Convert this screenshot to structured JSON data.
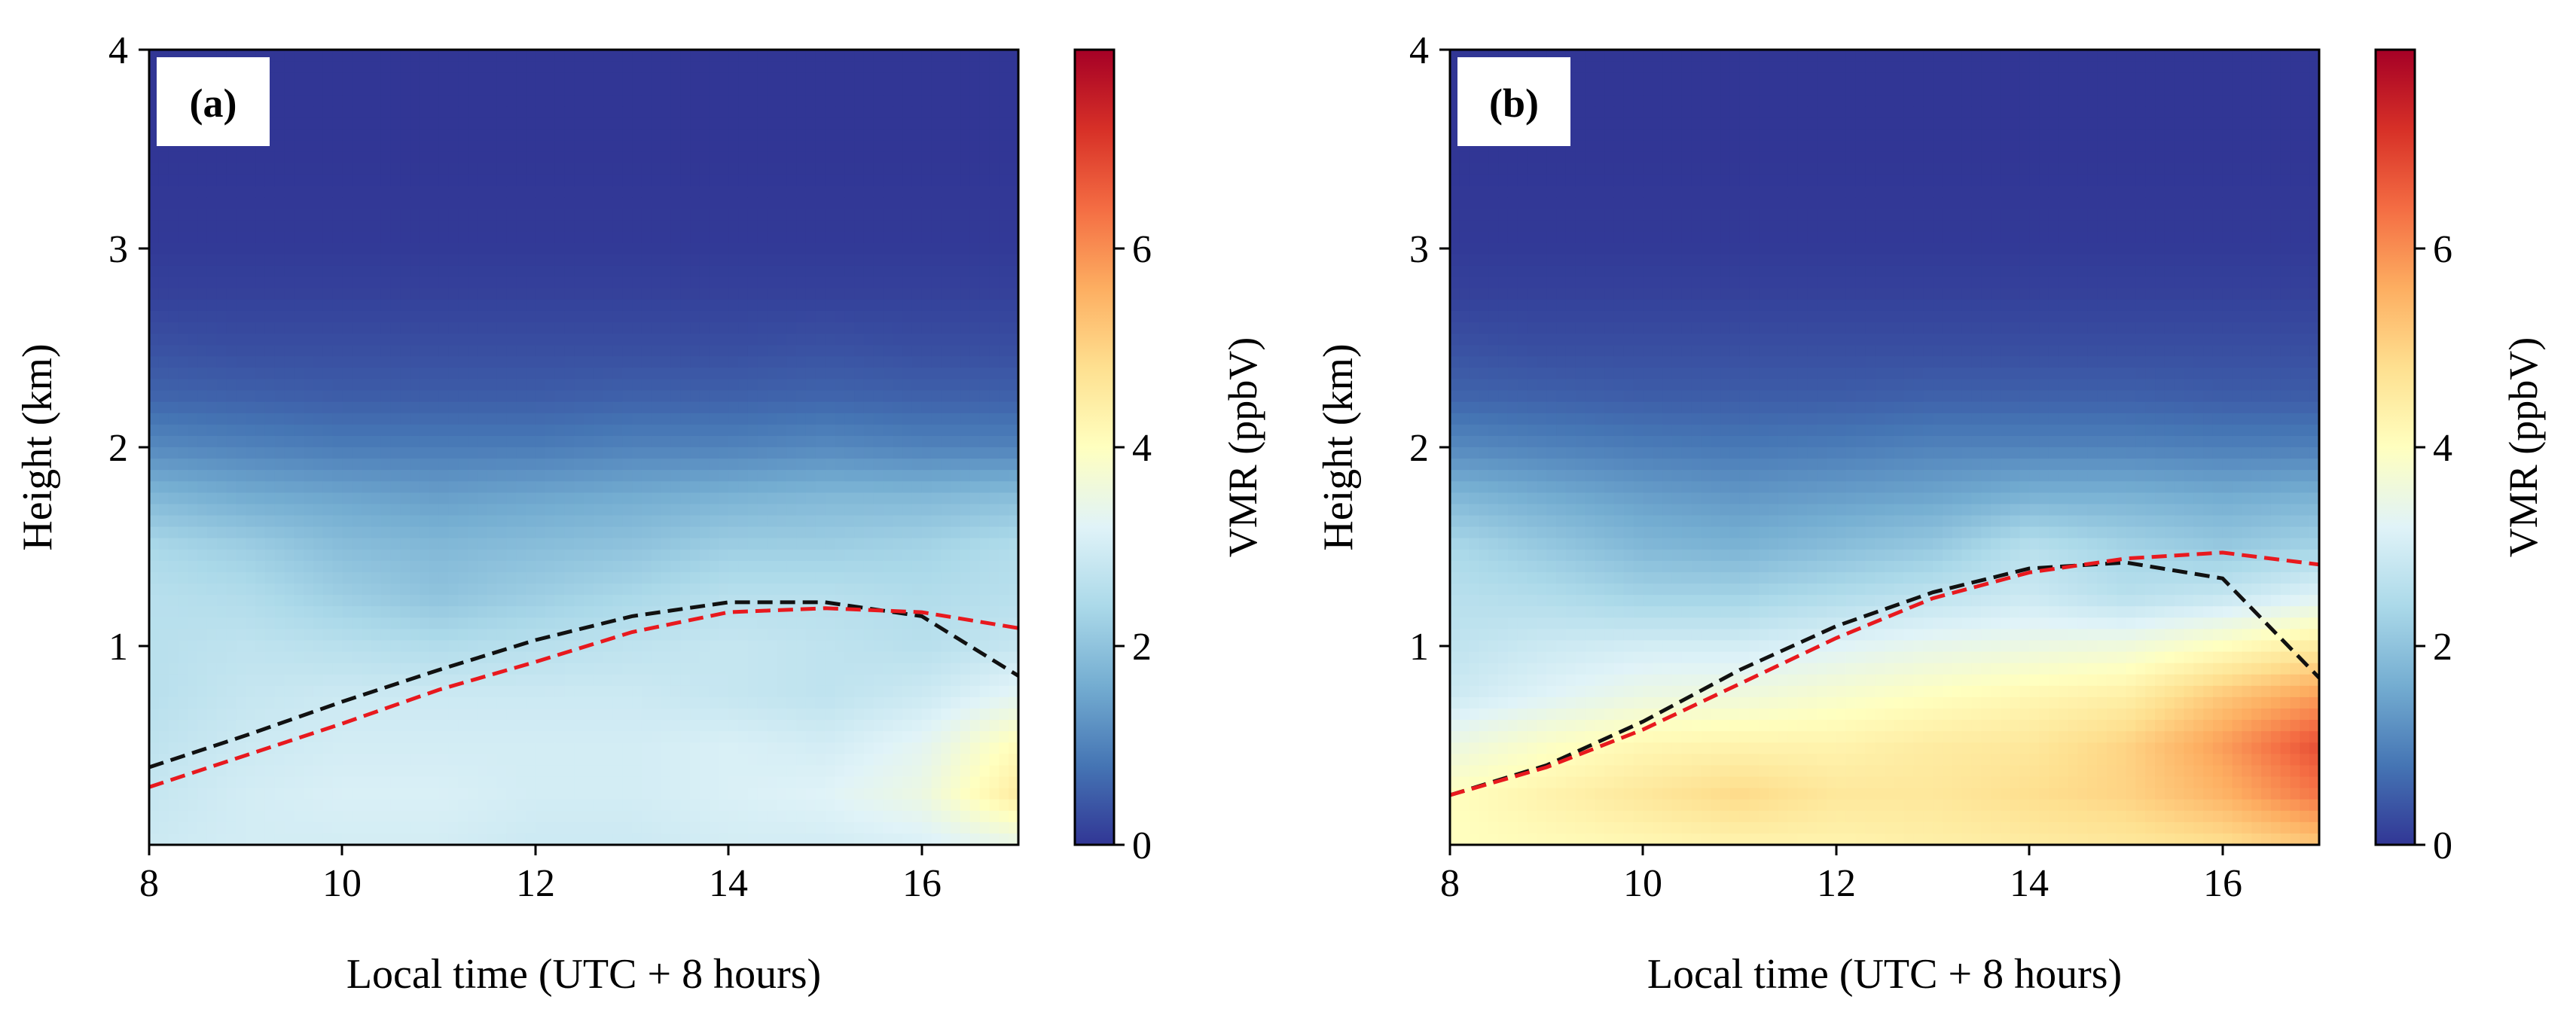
{
  "chart_data": [
    {
      "type": "heatmap",
      "panel_label": "(a)",
      "xlabel": "Local time (UTC + 8 hours)",
      "ylabel": "Height (km)",
      "xlim": [
        8,
        17
      ],
      "ylim": [
        0,
        4
      ],
      "xticks": [
        "8",
        "10",
        "12",
        "14",
        "16"
      ],
      "yticks": [
        "1",
        "2",
        "3",
        "4"
      ],
      "colorbar": {
        "label": "VMR (ppbV)",
        "ticks": [
          "0",
          "2",
          "4",
          "6"
        ],
        "range": [
          0,
          8
        ],
        "colormap": "RdYlBu_r"
      },
      "x_grid": [
        8,
        9,
        10,
        11,
        12,
        13,
        14,
        15,
        16,
        17
      ],
      "y_grid": [
        0,
        0.25,
        0.5,
        0.75,
        1.0,
        1.25,
        1.5,
        1.75,
        2.0,
        2.25,
        2.5,
        2.75,
        3.0,
        3.5,
        4.0
      ],
      "vmr_grid": [
        [
          2.9,
          3.0,
          3.0,
          3.0,
          2.9,
          2.9,
          3.0,
          3.0,
          3.1,
          3.4
        ],
        [
          2.8,
          3.0,
          3.1,
          3.1,
          3.0,
          3.0,
          3.1,
          3.2,
          3.5,
          4.5
        ],
        [
          2.7,
          2.9,
          3.0,
          3.0,
          3.0,
          3.0,
          3.1,
          3.0,
          3.3,
          4.1
        ],
        [
          2.6,
          2.8,
          2.9,
          2.9,
          2.9,
          2.9,
          2.8,
          2.7,
          2.9,
          3.3
        ],
        [
          2.6,
          2.7,
          2.6,
          2.5,
          2.6,
          2.7,
          2.8,
          2.7,
          2.6,
          2.8
        ],
        [
          2.6,
          2.5,
          2.2,
          2.0,
          2.2,
          2.4,
          2.6,
          2.6,
          2.5,
          2.6
        ],
        [
          2.4,
          2.2,
          1.9,
          1.8,
          1.9,
          2.0,
          2.2,
          2.2,
          2.3,
          2.5
        ],
        [
          1.8,
          1.6,
          1.5,
          1.4,
          1.5,
          1.6,
          1.7,
          1.8,
          1.8,
          1.9
        ],
        [
          1.1,
          1.0,
          0.9,
          0.9,
          0.9,
          1.0,
          1.0,
          1.1,
          1.0,
          1.0
        ],
        [
          0.6,
          0.55,
          0.5,
          0.5,
          0.5,
          0.55,
          0.55,
          0.6,
          0.55,
          0.55
        ],
        [
          0.35,
          0.3,
          0.3,
          0.3,
          0.3,
          0.3,
          0.3,
          0.35,
          0.3,
          0.3
        ],
        [
          0.15,
          0.15,
          0.15,
          0.15,
          0.15,
          0.15,
          0.15,
          0.15,
          0.15,
          0.15
        ],
        [
          0.05,
          0.05,
          0.05,
          0.05,
          0.05,
          0.05,
          0.05,
          0.05,
          0.05,
          0.05
        ],
        [
          0.0,
          0.0,
          0.0,
          0.0,
          0.0,
          0.0,
          0.0,
          0.0,
          0.0,
          0.0
        ],
        [
          0.0,
          0.0,
          0.0,
          0.0,
          0.0,
          0.0,
          0.0,
          0.0,
          0.0,
          0.0
        ]
      ],
      "series": [
        {
          "name": "black dashed",
          "color": "#111111",
          "x": [
            8,
            9,
            10,
            11,
            12,
            13,
            14,
            15,
            16,
            17
          ],
          "y": [
            0.39,
            0.55,
            0.72,
            0.88,
            1.03,
            1.15,
            1.22,
            1.22,
            1.15,
            0.85
          ]
        },
        {
          "name": "red dashed",
          "color": "#e8191e",
          "x": [
            8,
            9,
            10,
            11,
            12,
            13,
            14,
            15,
            16,
            17
          ],
          "y": [
            0.29,
            0.45,
            0.61,
            0.78,
            0.92,
            1.07,
            1.17,
            1.19,
            1.17,
            1.09
          ]
        }
      ]
    },
    {
      "type": "heatmap",
      "panel_label": "(b)",
      "xlabel": "Local time (UTC + 8 hours)",
      "ylabel": "Height (km)",
      "xlim": [
        8,
        17
      ],
      "ylim": [
        0,
        4
      ],
      "xticks": [
        "8",
        "10",
        "12",
        "14",
        "16"
      ],
      "yticks": [
        "1",
        "2",
        "3",
        "4"
      ],
      "colorbar": {
        "label": "VMR (ppbV)",
        "ticks": [
          "0",
          "2",
          "4",
          "6"
        ],
        "range": [
          0,
          8
        ],
        "colormap": "RdYlBu_r"
      },
      "x_grid": [
        8,
        9,
        10,
        11,
        12,
        13,
        14,
        15,
        16,
        17
      ],
      "y_grid": [
        0,
        0.25,
        0.5,
        0.75,
        1.0,
        1.25,
        1.5,
        1.75,
        2.0,
        2.25,
        2.5,
        2.75,
        3.0,
        3.5,
        4.0
      ],
      "vmr_grid": [
        [
          4.0,
          4.1,
          4.2,
          4.3,
          4.3,
          4.4,
          4.5,
          4.6,
          4.8,
          5.2
        ],
        [
          4.0,
          4.3,
          4.6,
          4.9,
          4.6,
          4.6,
          4.8,
          5.0,
          5.5,
          6.3
        ],
        [
          3.5,
          3.9,
          4.2,
          4.3,
          4.3,
          4.5,
          4.6,
          5.0,
          5.8,
          6.8
        ],
        [
          2.9,
          3.2,
          3.5,
          3.6,
          3.8,
          4.0,
          4.2,
          4.4,
          5.2,
          5.8
        ],
        [
          2.7,
          2.9,
          3.0,
          3.0,
          3.2,
          3.4,
          3.5,
          3.6,
          4.0,
          4.5
        ],
        [
          2.6,
          2.5,
          2.3,
          2.3,
          2.5,
          2.7,
          2.9,
          2.6,
          2.8,
          3.2
        ],
        [
          2.4,
          2.1,
          1.8,
          1.7,
          1.9,
          2.1,
          2.6,
          2.3,
          2.1,
          2.3
        ],
        [
          1.8,
          1.6,
          1.4,
          1.3,
          1.4,
          1.5,
          1.7,
          1.7,
          1.6,
          1.7
        ],
        [
          1.1,
          1.0,
          0.9,
          0.85,
          0.9,
          1.0,
          1.0,
          1.0,
          0.95,
          0.95
        ],
        [
          0.6,
          0.55,
          0.5,
          0.5,
          0.5,
          0.55,
          0.55,
          0.55,
          0.5,
          0.5
        ],
        [
          0.35,
          0.3,
          0.3,
          0.3,
          0.3,
          0.3,
          0.3,
          0.3,
          0.3,
          0.3
        ],
        [
          0.15,
          0.15,
          0.15,
          0.15,
          0.15,
          0.15,
          0.15,
          0.15,
          0.15,
          0.15
        ],
        [
          0.05,
          0.05,
          0.05,
          0.05,
          0.05,
          0.05,
          0.05,
          0.05,
          0.05,
          0.05
        ],
        [
          0.0,
          0.0,
          0.0,
          0.0,
          0.0,
          0.0,
          0.0,
          0.0,
          0.0,
          0.0
        ],
        [
          0.0,
          0.0,
          0.0,
          0.0,
          0.0,
          0.0,
          0.0,
          0.0,
          0.0,
          0.0
        ]
      ],
      "series": [
        {
          "name": "black dashed",
          "color": "#111111",
          "x": [
            8,
            9,
            10,
            11,
            12,
            13,
            14,
            15,
            16,
            17
          ],
          "y": [
            0.25,
            0.4,
            0.62,
            0.88,
            1.1,
            1.27,
            1.39,
            1.42,
            1.34,
            0.84
          ]
        },
        {
          "name": "red dashed",
          "color": "#e8191e",
          "x": [
            8,
            9,
            10,
            11,
            12,
            13,
            14,
            15,
            16,
            17
          ],
          "y": [
            0.25,
            0.39,
            0.58,
            0.81,
            1.04,
            1.24,
            1.37,
            1.44,
            1.47,
            1.41
          ]
        }
      ]
    }
  ]
}
